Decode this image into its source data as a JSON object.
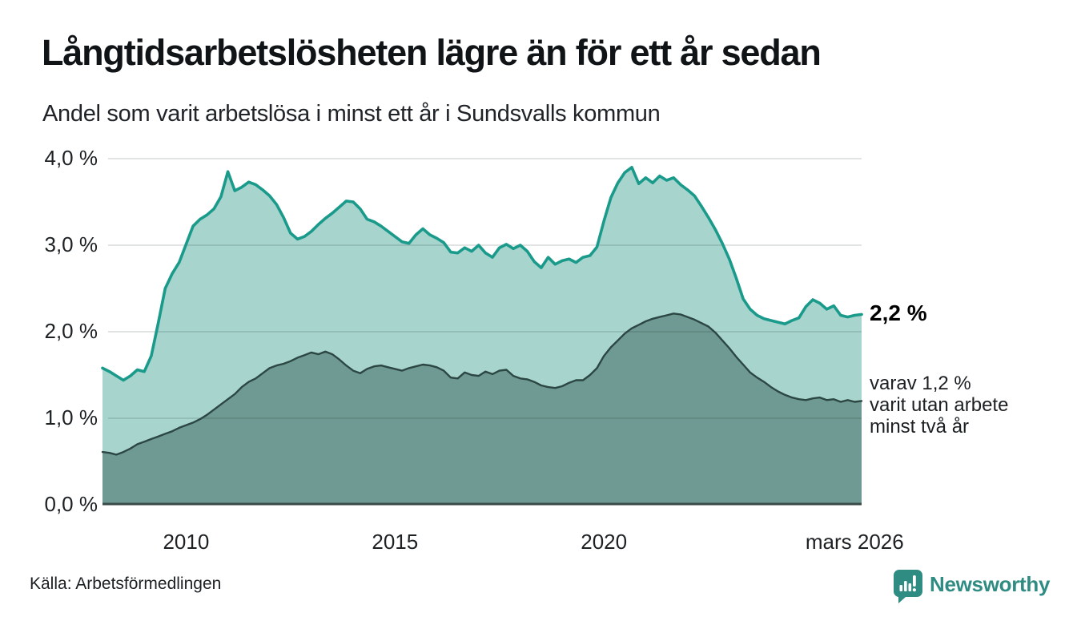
{
  "page": {
    "title": "Långtidsarbetslösheten lägre än för ett år sedan",
    "subtitle": "Andel som varit arbetslösa i minst ett år i Sundsvalls kommun",
    "source": "Källa: Arbetsförmedlingen",
    "brand": {
      "name": "Newsworthy",
      "color": "#2f8c82"
    }
  },
  "colors": {
    "series1_line": "#1a9a8b",
    "series1_fill": "#a7d5cd",
    "series2_line": "#2c4743",
    "series2_fill": "#6f9a93",
    "gridline": "#d9d9d9",
    "axis_line": "#3a4a47",
    "text": "#1d2124"
  },
  "chart_data": {
    "type": "area",
    "title": "Långtidsarbetslösheten lägre än för ett år sedan",
    "subtitle": "Andel som varit arbetslösa i minst ett år i Sundsvalls kommun",
    "xlabel": "",
    "ylabel": "",
    "ylim": [
      0,
      4
    ],
    "grid": true,
    "legend_position": "none",
    "x_start": 2008.0,
    "x_step": 0.166667,
    "y_ticks": [
      {
        "label": "4,0 %",
        "value": 4
      },
      {
        "label": "3,0 %",
        "value": 3
      },
      {
        "label": "2,0 %",
        "value": 2
      },
      {
        "label": "1,0 %",
        "value": 1
      },
      {
        "label": "0,0 %",
        "value": 0
      }
    ],
    "x_ticks": [
      {
        "label": "2010",
        "t": 2010
      },
      {
        "label": "2015",
        "t": 2015
      },
      {
        "label": "2020",
        "t": 2020
      },
      {
        "label": "mars 2026",
        "t": 2026.0
      }
    ],
    "series": [
      {
        "name": "Andel som varit arbetslösa i minst ett år",
        "end_label": "2,2 %",
        "line_color": "#1a9a8b",
        "fill_color": "#a7d5cd",
        "values": [
          1.58,
          1.54,
          1.49,
          1.44,
          1.49,
          1.56,
          1.54,
          1.72,
          2.1,
          2.5,
          2.67,
          2.8,
          3.01,
          3.22,
          3.3,
          3.35,
          3.42,
          3.56,
          3.85,
          3.63,
          3.67,
          3.73,
          3.7,
          3.64,
          3.57,
          3.47,
          3.32,
          3.14,
          3.07,
          3.1,
          3.16,
          3.24,
          3.31,
          3.37,
          3.44,
          3.51,
          3.5,
          3.42,
          3.3,
          3.27,
          3.22,
          3.16,
          3.1,
          3.04,
          3.02,
          3.12,
          3.19,
          3.12,
          3.08,
          3.03,
          2.92,
          2.91,
          2.97,
          2.93,
          3.0,
          2.91,
          2.86,
          2.97,
          3.01,
          2.96,
          3.0,
          2.93,
          2.81,
          2.74,
          2.86,
          2.78,
          2.82,
          2.84,
          2.8,
          2.86,
          2.88,
          2.98,
          3.28,
          3.55,
          3.72,
          3.84,
          3.9,
          3.71,
          3.78,
          3.72,
          3.8,
          3.75,
          3.78,
          3.7,
          3.64,
          3.57,
          3.45,
          3.32,
          3.18,
          3.02,
          2.84,
          2.62,
          2.38,
          2.26,
          2.19,
          2.15,
          2.13,
          2.11,
          2.09,
          2.13,
          2.16,
          2.29,
          2.37,
          2.33,
          2.26,
          2.3,
          2.19,
          2.17,
          2.19,
          2.2
        ]
      },
      {
        "name": "varav varit utan arbete minst två år",
        "end_label": "1,2 %",
        "line_color": "#2c4743",
        "fill_color": "#6f9a93",
        "values": [
          0.61,
          0.6,
          0.58,
          0.61,
          0.65,
          0.7,
          0.73,
          0.76,
          0.79,
          0.82,
          0.85,
          0.89,
          0.92,
          0.95,
          0.99,
          1.04,
          1.1,
          1.16,
          1.22,
          1.28,
          1.36,
          1.42,
          1.46,
          1.52,
          1.58,
          1.61,
          1.63,
          1.66,
          1.7,
          1.73,
          1.76,
          1.74,
          1.77,
          1.74,
          1.68,
          1.61,
          1.55,
          1.52,
          1.57,
          1.6,
          1.61,
          1.59,
          1.57,
          1.55,
          1.58,
          1.6,
          1.62,
          1.61,
          1.59,
          1.55,
          1.47,
          1.46,
          1.53,
          1.5,
          1.49,
          1.54,
          1.51,
          1.55,
          1.56,
          1.49,
          1.46,
          1.45,
          1.42,
          1.38,
          1.36,
          1.35,
          1.37,
          1.41,
          1.44,
          1.44,
          1.5,
          1.58,
          1.72,
          1.82,
          1.9,
          1.98,
          2.04,
          2.08,
          2.12,
          2.15,
          2.17,
          2.19,
          2.21,
          2.2,
          2.17,
          2.14,
          2.1,
          2.06,
          1.99,
          1.9,
          1.81,
          1.71,
          1.62,
          1.53,
          1.47,
          1.42,
          1.36,
          1.31,
          1.27,
          1.24,
          1.22,
          1.21,
          1.23,
          1.24,
          1.21,
          1.22,
          1.19,
          1.21,
          1.19,
          1.2
        ]
      }
    ],
    "annotations": [
      {
        "text": "2,2 %",
        "value": 2.2
      },
      {
        "lines": [
          "varav 1,2 %",
          "varit utan arbete",
          "minst två år"
        ],
        "value": 1.2
      }
    ]
  }
}
